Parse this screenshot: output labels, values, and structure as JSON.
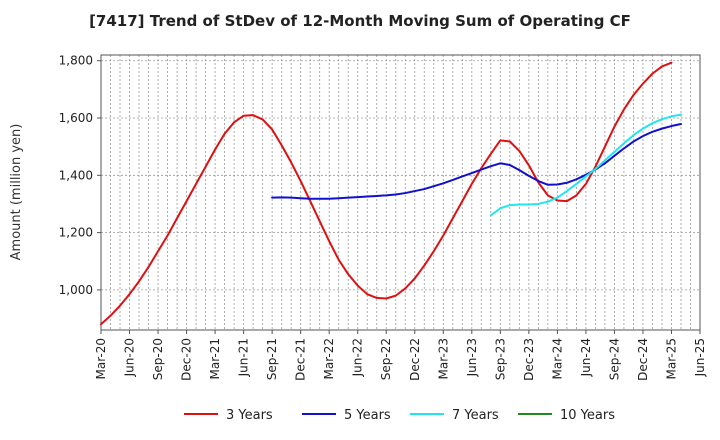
{
  "chart_data": {
    "type": "line",
    "title": "[7417]  Trend of StDev of 12-Month Moving Sum of Operating CF",
    "xlabel": "",
    "ylabel": "Amount (million yen)",
    "ylim": [
      860,
      1820
    ],
    "yticks": [
      1000,
      1200,
      1400,
      1600,
      1800
    ],
    "ytick_labels": [
      "1,000",
      "1,200",
      "1,400",
      "1,600",
      "1,800"
    ],
    "x_start": "Mar-20",
    "x_ticks": [
      "Mar-20",
      "Jun-20",
      "Sep-20",
      "Dec-20",
      "Mar-21",
      "Jun-21",
      "Sep-21",
      "Dec-21",
      "Mar-22",
      "Jun-22",
      "Sep-22",
      "Dec-22",
      "Mar-23",
      "Jun-23",
      "Sep-23",
      "Dec-23",
      "Mar-24",
      "Jun-24",
      "Sep-24",
      "Dec-24",
      "Mar-25",
      "Jun-25"
    ],
    "grid": true,
    "legend_position": "bottom",
    "series": [
      {
        "name": "3 Years",
        "color": "#dd1111",
        "start_index": 0,
        "values": [
          880,
          910,
          945,
          985,
          1030,
          1080,
          1135,
          1190,
          1250,
          1310,
          1370,
          1430,
          1490,
          1545,
          1585,
          1608,
          1610,
          1595,
          1560,
          1505,
          1445,
          1380,
          1310,
          1240,
          1170,
          1105,
          1055,
          1015,
          985,
          972,
          970,
          980,
          1005,
          1040,
          1085,
          1135,
          1190,
          1250,
          1310,
          1370,
          1425,
          1475,
          1522,
          1518,
          1485,
          1435,
          1375,
          1330,
          1312,
          1310,
          1330,
          1370,
          1430,
          1500,
          1570,
          1630,
          1680,
          1720,
          1755,
          1780,
          1793
        ]
      },
      {
        "name": "5 Years",
        "color": "#1111cc",
        "start_index": 18,
        "values": [
          1322,
          1323,
          1322,
          1320,
          1318,
          1318,
          1318,
          1320,
          1322,
          1324,
          1326,
          1328,
          1330,
          1333,
          1338,
          1345,
          1352,
          1362,
          1372,
          1384,
          1396,
          1408,
          1420,
          1432,
          1442,
          1436,
          1418,
          1398,
          1380,
          1367,
          1368,
          1374,
          1386,
          1402,
          1420,
          1442,
          1468,
          1494,
          1518,
          1537,
          1552,
          1563,
          1572,
          1579
        ]
      },
      {
        "name": "7 Years",
        "color": "#22e5ee",
        "start_index": 41,
        "values": [
          1260,
          1285,
          1296,
          1298,
          1298,
          1300,
          1308,
          1322,
          1345,
          1370,
          1396,
          1422,
          1452,
          1482,
          1512,
          1540,
          1563,
          1582,
          1596,
          1606,
          1612
        ]
      },
      {
        "name": "10 Years",
        "color": "#228822",
        "start_index": 0,
        "values": []
      }
    ]
  }
}
